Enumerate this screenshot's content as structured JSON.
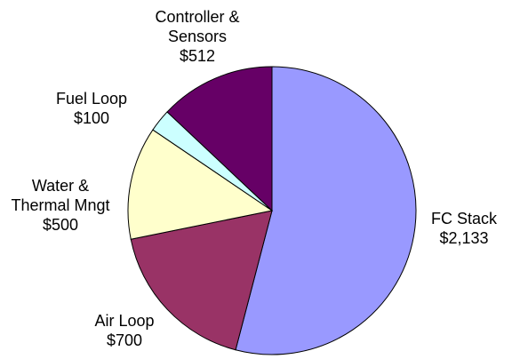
{
  "chart_data": {
    "type": "pie",
    "categories": [
      "FC Stack",
      "Air Loop",
      "Water & Thermal Mngt",
      "Fuel Loop",
      "Controller & Sensors"
    ],
    "values": [
      2133,
      700,
      500,
      100,
      512
    ],
    "value_labels": [
      "$2,133",
      "$700",
      "$500",
      "$100",
      "$512"
    ],
    "colors": [
      "#9999ff",
      "#993366",
      "#ffffcc",
      "#ccffff",
      "#660066"
    ],
    "start_angle": 0,
    "direction": "clockwise"
  }
}
